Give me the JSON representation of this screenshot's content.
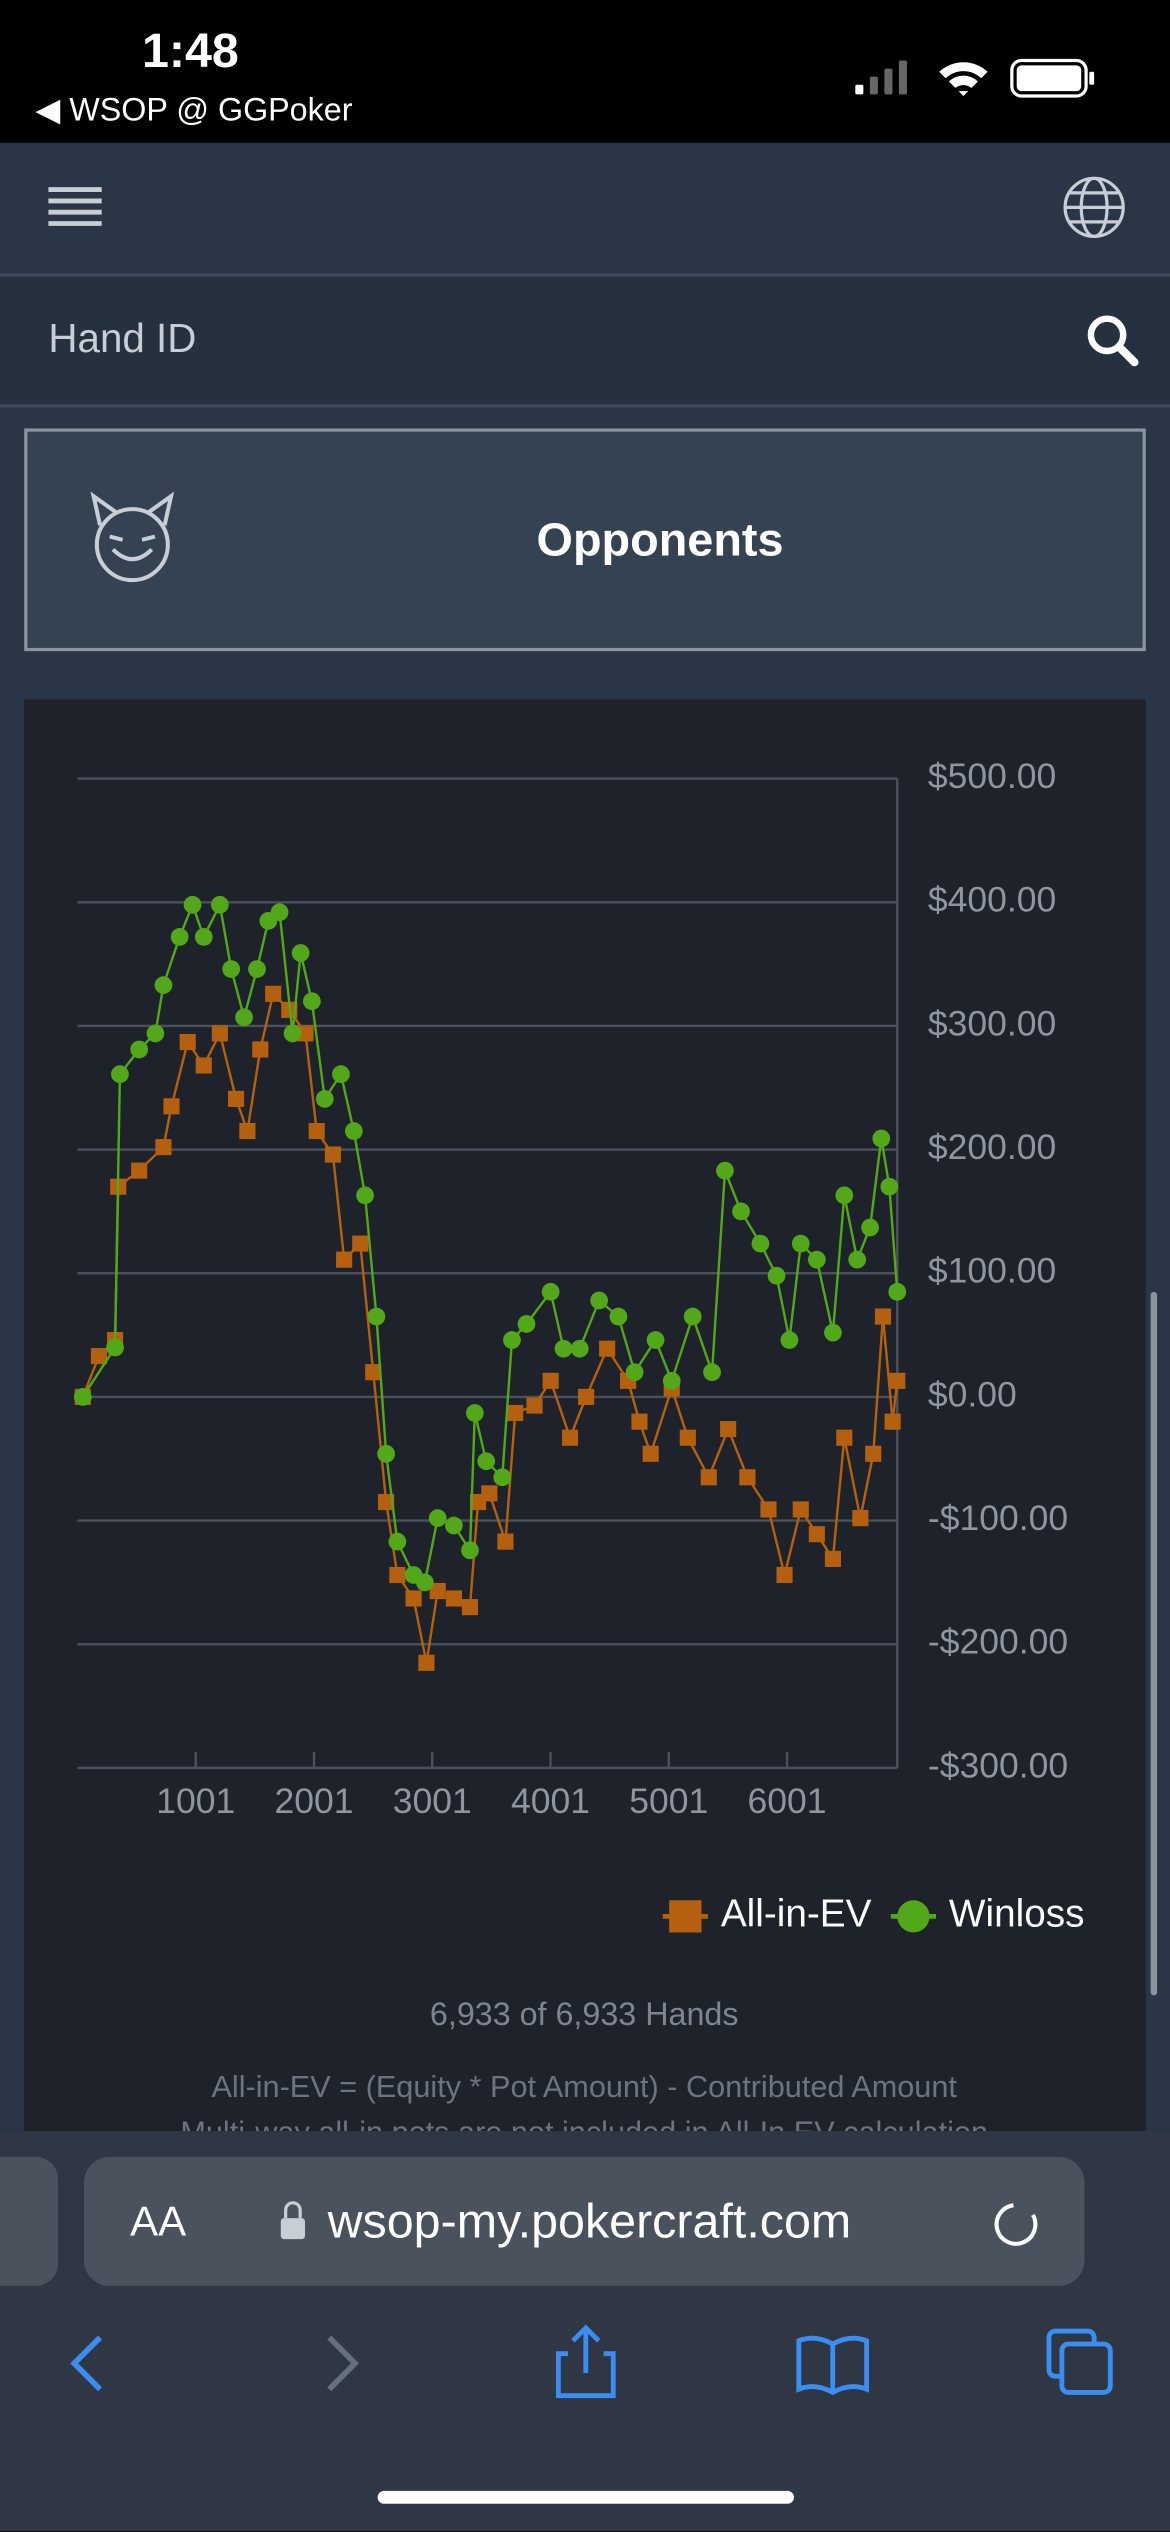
{
  "status_bar": {
    "time": "1:48",
    "back_label": "◀ WSOP @ GGPoker"
  },
  "search": {
    "placeholder": "Hand ID"
  },
  "opponents_button": {
    "label": "Opponents"
  },
  "chart_data": {
    "type": "line",
    "xlim": [
      1,
      6933
    ],
    "xticks": [
      1001,
      2001,
      3001,
      4001,
      5001,
      6001
    ],
    "ylim": [
      -300,
      500
    ],
    "yticks": [
      {
        "value": 500,
        "label": "$500.00"
      },
      {
        "value": 400,
        "label": "$400.00"
      },
      {
        "value": 300,
        "label": "$300.00"
      },
      {
        "value": 200,
        "label": "$200.00"
      },
      {
        "value": 100,
        "label": "$100.00"
      },
      {
        "value": 0,
        "label": "$0.00"
      },
      {
        "value": -100,
        "label": "-$100.00"
      },
      {
        "value": -200,
        "label": "-$200.00"
      },
      {
        "value": -300,
        "label": "-$300.00"
      }
    ],
    "grid": true,
    "legend": "bottom-right",
    "series": [
      {
        "name": "All-in-EV",
        "color": "#b5600f",
        "marker": "square",
        "x": [
          46,
          183,
          319,
          346,
          523,
          728,
          796,
          933,
          1069,
          1205,
          1342,
          1438,
          1547,
          1656,
          1792,
          1929,
          2024,
          2161,
          2256,
          2392,
          2502,
          2611,
          2706,
          2843,
          2952,
          3047,
          3184,
          3320,
          3388,
          3484,
          3620,
          3702,
          3866,
          4002,
          4166,
          4302,
          4480,
          4657,
          4753,
          4848,
          5026,
          5162,
          5339,
          5503,
          5666,
          5844,
          5980,
          6117,
          6253,
          6389,
          6485,
          6621,
          6730,
          6812,
          6894,
          6933
        ],
        "values": [
          0,
          33,
          46,
          170,
          183,
          202,
          235,
          287,
          268,
          294,
          241,
          215,
          281,
          326,
          313,
          294,
          215,
          196,
          111,
          124,
          20,
          -85,
          -144,
          -163,
          -215,
          -157,
          -163,
          -170,
          -85,
          -78,
          -117,
          -13,
          -7,
          13,
          -33,
          0,
          39,
          13,
          -20,
          -46,
          7,
          -33,
          -65,
          -26,
          -65,
          -91,
          -144,
          -91,
          -111,
          -131,
          -33,
          -98,
          -46,
          65,
          -20,
          13
        ]
      },
      {
        "name": "Winloss",
        "color": "#52a818",
        "marker": "circle",
        "x": [
          46,
          319,
          360,
          523,
          660,
          728,
          865,
          974,
          1069,
          1205,
          1301,
          1410,
          1519,
          1615,
          1710,
          1820,
          1888,
          1983,
          2092,
          2229,
          2338,
          2433,
          2529,
          2611,
          2706,
          2843,
          2938,
          3047,
          3184,
          3320,
          3361,
          3457,
          3593,
          3675,
          3798,
          4002,
          4111,
          4248,
          4412,
          4575,
          4712,
          4889,
          5026,
          5203,
          5367,
          5476,
          5612,
          5776,
          5912,
          6021,
          6117,
          6253,
          6389,
          6485,
          6594,
          6703,
          6798,
          6866,
          6933
        ],
        "values": [
          0,
          40,
          261,
          281,
          294,
          333,
          372,
          398,
          372,
          398,
          346,
          307,
          346,
          385,
          392,
          294,
          359,
          320,
          241,
          261,
          215,
          163,
          65,
          -46,
          -117,
          -144,
          -150,
          -98,
          -104,
          -124,
          -13,
          -52,
          -65,
          46,
          59,
          85,
          39,
          39,
          78,
          65,
          20,
          46,
          13,
          65,
          20,
          183,
          150,
          124,
          98,
          46,
          124,
          111,
          52,
          163,
          111,
          137,
          209,
          170,
          85
        ]
      }
    ]
  },
  "hands_count": "6,933 of 6,933 Hands",
  "footnotes": [
    "All-in-EV = (Equity * Pot Amount) - Contributed Amount",
    "Multi-way all-in pots are not included in All-In EV calculation"
  ],
  "browser": {
    "text_size": "AA",
    "url": "wsop-my.pokercraft.com"
  }
}
